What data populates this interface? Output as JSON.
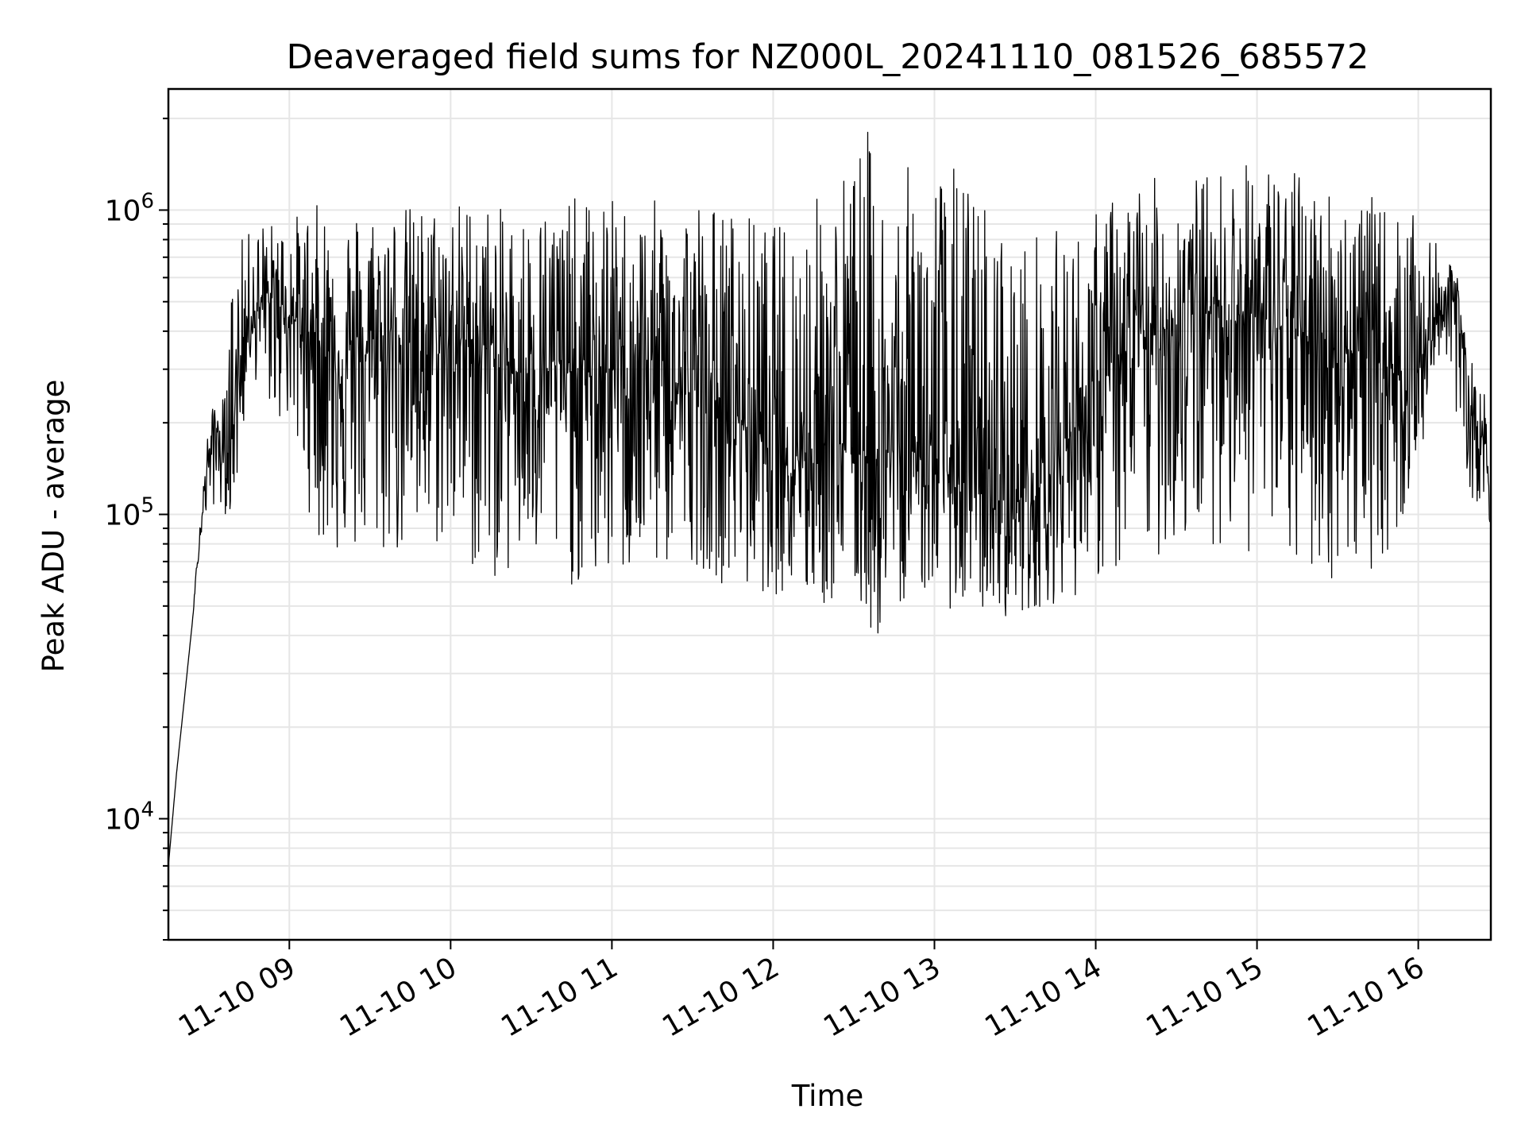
{
  "chart_data": {
    "type": "line",
    "title": "Deaveraged field sums for NZ000L_20241110_081526_685572",
    "xlabel": "Time",
    "ylabel": "Peak ADU - average",
    "yscale": "log",
    "xlim": [
      "2024-11-10T08:15",
      "2024-11-10T16:27"
    ],
    "ylim": [
      4000,
      2500000
    ],
    "grid": true,
    "legend": "none",
    "line_color": "#000000",
    "x_ticks": [
      {
        "value": "2024-11-10T09:00",
        "label": "11-10 09"
      },
      {
        "value": "2024-11-10T10:00",
        "label": "11-10 10"
      },
      {
        "value": "2024-11-10T11:00",
        "label": "11-10 11"
      },
      {
        "value": "2024-11-10T12:00",
        "label": "11-10 12"
      },
      {
        "value": "2024-11-10T13:00",
        "label": "11-10 13"
      },
      {
        "value": "2024-11-10T14:00",
        "label": "11-10 14"
      },
      {
        "value": "2024-11-10T15:00",
        "label": "11-10 15"
      },
      {
        "value": "2024-11-10T16:00",
        "label": "11-10 16"
      }
    ],
    "y_ticks": [
      {
        "value": 10000,
        "base": "10",
        "exp": "4"
      },
      {
        "value": 100000,
        "base": "10",
        "exp": "5"
      },
      {
        "value": 1000000,
        "base": "10",
        "exp": "6"
      }
    ],
    "series": [
      {
        "x": [
          "2024-11-10T08:15",
          "2024-11-10T08:18",
          "2024-11-10T08:21",
          "2024-11-10T08:24",
          "2024-11-10T08:27",
          "2024-11-10T08:30",
          "2024-11-10T08:33",
          "2024-11-10T08:36",
          "2024-11-10T08:39",
          "2024-11-10T08:42",
          "2024-11-10T08:45",
          "2024-11-10T08:50",
          "2024-11-10T08:55",
          "2024-11-10T09:00",
          "2024-11-10T09:10",
          "2024-11-10T09:20",
          "2024-11-10T09:30",
          "2024-11-10T09:40",
          "2024-11-10T09:50",
          "2024-11-10T10:00",
          "2024-11-10T10:10",
          "2024-11-10T10:20",
          "2024-11-10T10:30",
          "2024-11-10T10:40",
          "2024-11-10T10:50",
          "2024-11-10T11:00",
          "2024-11-10T11:10",
          "2024-11-10T11:20",
          "2024-11-10T11:30",
          "2024-11-10T11:40",
          "2024-11-10T11:50",
          "2024-11-10T12:00",
          "2024-11-10T12:10",
          "2024-11-10T12:20",
          "2024-11-10T12:30",
          "2024-11-10T12:35",
          "2024-11-10T12:40",
          "2024-11-10T12:50",
          "2024-11-10T13:00",
          "2024-11-10T13:10",
          "2024-11-10T13:20",
          "2024-11-10T13:30",
          "2024-11-10T13:40",
          "2024-11-10T13:50",
          "2024-11-10T14:00",
          "2024-11-10T14:10",
          "2024-11-10T14:20",
          "2024-11-10T14:30",
          "2024-11-10T14:40",
          "2024-11-10T14:50",
          "2024-11-10T15:00",
          "2024-11-10T15:10",
          "2024-11-10T15:20",
          "2024-11-10T15:30",
          "2024-11-10T15:40",
          "2024-11-10T15:50",
          "2024-11-10T16:00",
          "2024-11-10T16:10",
          "2024-11-10T16:15",
          "2024-11-10T16:20",
          "2024-11-10T16:25",
          "2024-11-10T16:27"
        ],
        "y": [
          7000,
          14000,
          25000,
          45000,
          90000,
          160000,
          190000,
          140000,
          200000,
          330000,
          450000,
          480000,
          520000,
          450000,
          380000,
          320000,
          340000,
          400000,
          330000,
          360000,
          380000,
          300000,
          290000,
          310000,
          280000,
          300000,
          290000,
          270000,
          250000,
          230000,
          200000,
          170000,
          160000,
          180000,
          170000,
          160000,
          150000,
          170000,
          140000,
          130000,
          110000,
          110000,
          120000,
          180000,
          250000,
          320000,
          380000,
          430000,
          460000,
          470000,
          450000,
          400000,
          380000,
          360000,
          330000,
          300000,
          300000,
          520000,
          500000,
          200000,
          170000,
          90000
        ],
        "min": [
          7000,
          14000,
          25000,
          45000,
          85000,
          100000,
          110000,
          100000,
          100000,
          150000,
          300000,
          250000,
          200000,
          200000,
          80000,
          70000,
          70000,
          70000,
          70000,
          80000,
          60000,
          60000,
          65000,
          60000,
          55000,
          60000,
          60000,
          65000,
          70000,
          60000,
          55000,
          55000,
          50000,
          48000,
          55000,
          40000,
          38000,
          55000,
          55000,
          45000,
          48000,
          45000,
          50000,
          52000,
          60000,
          60000,
          70000,
          75000,
          80000,
          80000,
          70000,
          65000,
          60000,
          60000,
          65000,
          70000,
          140000,
          380000,
          120000,
          110000,
          110000,
          90000
        ],
        "max": [
          7000,
          14000,
          25000,
          45000,
          110000,
          200000,
          250000,
          250000,
          700000,
          800000,
          850000,
          950000,
          900000,
          950000,
          1050000,
          1050000,
          1050000,
          1050000,
          1050000,
          1100000,
          1100000,
          1000000,
          1050000,
          1100000,
          1100000,
          1100000,
          1050000,
          1100000,
          1200000,
          1050000,
          1000000,
          900000,
          1100000,
          1200000,
          1600000,
          1900000,
          1300000,
          1400000,
          1500000,
          1400000,
          1100000,
          800000,
          900000,
          850000,
          1000000,
          1200000,
          1300000,
          1200000,
          1350000,
          1400000,
          1500000,
          1400000,
          1300000,
          1200000,
          1150000,
          1000000,
          950000,
          700000,
          600000,
          320000,
          250000,
          90000
        ]
      }
    ]
  }
}
